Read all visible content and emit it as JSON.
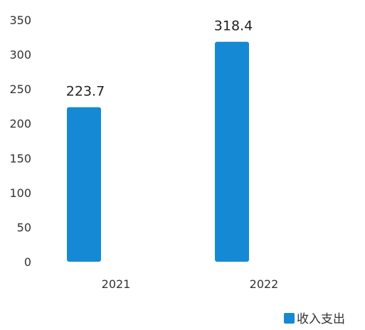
{
  "chart_data": {
    "type": "bar",
    "categories": [
      "2021",
      "2022"
    ],
    "series": [
      {
        "name": "收入支出",
        "values": [
          223.7,
          318.4
        ]
      }
    ],
    "data_labels": [
      "223.7",
      "318.4"
    ],
    "ylim": [
      0,
      350
    ],
    "yticks": [
      0,
      50,
      100,
      150,
      200,
      250,
      300,
      350
    ],
    "grid": false,
    "legend_position": "bottom-right",
    "colors": {
      "bar": "#1689D4"
    }
  }
}
